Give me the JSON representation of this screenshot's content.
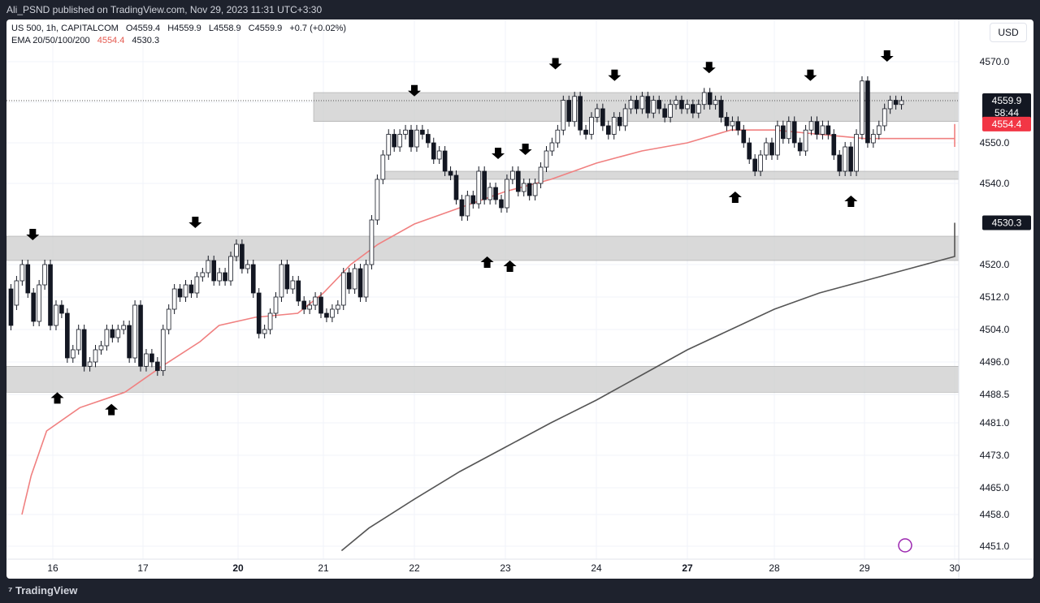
{
  "header": {
    "published": "Ali_PSND published on TradingView.com, Nov 29, 2023 11:31 UTC+3:30"
  },
  "legend": {
    "symbol": "US 500, 1h, CAPITALCOM",
    "open": "O4559.4",
    "high": "H4559.9",
    "low": "L4558.9",
    "close": "C4559.9",
    "change": "+0.7 (+0.02%)",
    "ema_label": "EMA 20/50/100/200",
    "ema_val1": "4554.4",
    "ema_val2": "4530.3"
  },
  "currency": "USD",
  "footer": {
    "brand": "TradingView"
  },
  "colors": {
    "bull": "#26a69a",
    "bear": "#ef5350",
    "candle": "#131722",
    "ema_fast": "#f08080",
    "ema_slow": "#555555",
    "zone": "#cccccc"
  },
  "chart_data": {
    "type": "candlestick",
    "symbol": "US 500",
    "interval": "1h",
    "ylim": [
      4448,
      4576
    ],
    "y_ticks": [
      "4570.0",
      "4550.0",
      "4540.0",
      "4520.0",
      "4512.0",
      "4504.0",
      "4496.0",
      "4488.5",
      "4481.0",
      "4473.0",
      "4465.0",
      "4458.0",
      "4451.0"
    ],
    "x_ticks": [
      "16",
      "17",
      "20",
      "21",
      "22",
      "23",
      "24",
      "27",
      "28",
      "29",
      "30"
    ],
    "price_labels": [
      {
        "value": 4559.9,
        "text": "4559.9",
        "sub": "58:44",
        "kind": "last"
      },
      {
        "value": 4554.4,
        "text": "4554.4",
        "kind": "ema20"
      },
      {
        "value": 4530.3,
        "text": "4530.3",
        "kind": "ema200"
      }
    ],
    "zones": [
      {
        "from": 4555,
        "to": 4562,
        "start": "20"
      },
      {
        "from": 4541,
        "to": 4543,
        "start": "21"
      },
      {
        "from": 4521,
        "to": 4527,
        "start": "15"
      },
      {
        "from": 4489,
        "to": 4495,
        "start": "15"
      }
    ],
    "ema20": [
      [
        15.0,
        4458
      ],
      [
        15.3,
        4468
      ],
      [
        15.8,
        4479
      ],
      [
        16.3,
        4485
      ],
      [
        16.8,
        4489
      ],
      [
        17.2,
        4495
      ],
      [
        17.6,
        4501
      ],
      [
        17.8,
        4505
      ],
      [
        18.2,
        4507
      ],
      [
        18.7,
        4508
      ],
      [
        19.0,
        4513
      ],
      [
        19.3,
        4520
      ],
      [
        19.6,
        4525
      ],
      [
        20.0,
        4530
      ],
      [
        20.5,
        4534
      ],
      [
        21.0,
        4538
      ],
      [
        21.5,
        4541
      ],
      [
        22.0,
        4545
      ],
      [
        22.5,
        4548
      ],
      [
        23.0,
        4550
      ],
      [
        23.5,
        4553
      ],
      [
        24.0,
        4553
      ],
      [
        24.5,
        4552
      ],
      [
        25.0,
        4551
      ],
      [
        25.5,
        4551
      ],
      [
        26.0,
        4551
      ],
      [
        26.3,
        4551
      ],
      [
        26.6,
        4549
      ],
      [
        27.0,
        4551
      ],
      [
        27.2,
        4553
      ],
      [
        27.5,
        4554.4
      ]
    ],
    "ema200": [
      [
        19.2,
        4450
      ],
      [
        19.5,
        4455
      ],
      [
        20.0,
        4462
      ],
      [
        20.5,
        4469
      ],
      [
        21.0,
        4475
      ],
      [
        21.5,
        4481
      ],
      [
        22.0,
        4487
      ],
      [
        22.5,
        4493
      ],
      [
        23.0,
        4499
      ],
      [
        23.5,
        4504
      ],
      [
        24.0,
        4509
      ],
      [
        24.5,
        4513
      ],
      [
        25.0,
        4516
      ],
      [
        25.5,
        4519
      ],
      [
        26.0,
        4522
      ],
      [
        26.5,
        4524
      ],
      [
        27.0,
        4526
      ],
      [
        27.5,
        4528
      ],
      [
        28.0,
        4530.3
      ]
    ],
    "arrows": [
      {
        "x": 15.35,
        "y": 4526,
        "dir": "down"
      },
      {
        "x": 17.55,
        "y": 4529,
        "dir": "down"
      },
      {
        "x": 20.0,
        "y": 4561,
        "dir": "down"
      },
      {
        "x": 20.92,
        "y": 4546,
        "dir": "down"
      },
      {
        "x": 21.22,
        "y": 4547,
        "dir": "down"
      },
      {
        "x": 21.55,
        "y": 4568,
        "dir": "down"
      },
      {
        "x": 22.2,
        "y": 4565,
        "dir": "down"
      },
      {
        "x": 23.25,
        "y": 4567,
        "dir": "down"
      },
      {
        "x": 24.4,
        "y": 4565,
        "dir": "down"
      },
      {
        "x": 25.25,
        "y": 4570,
        "dir": "down"
      },
      {
        "x": 16.05,
        "y": 4489,
        "dir": "up"
      },
      {
        "x": 16.65,
        "y": 4486,
        "dir": "up"
      },
      {
        "x": 20.8,
        "y": 4522,
        "dir": "up"
      },
      {
        "x": 21.05,
        "y": 4521,
        "dir": "up"
      },
      {
        "x": 23.55,
        "y": 4538,
        "dir": "up"
      },
      {
        "x": 24.85,
        "y": 4537,
        "dir": "up"
      }
    ],
    "candles": [
      [
        4514,
        4505
      ],
      [
        4510,
        4516
      ],
      [
        4516,
        4520
      ],
      [
        4520,
        4513
      ],
      [
        4513,
        4506
      ],
      [
        4506,
        4515
      ],
      [
        4515,
        4520
      ],
      [
        4520,
        4505
      ],
      [
        4505,
        4510
      ],
      [
        4510,
        4508
      ],
      [
        4508,
        4497
      ],
      [
        4497,
        4499
      ],
      [
        4499,
        4504
      ],
      [
        4504,
        4495
      ],
      [
        4495,
        4496
      ],
      [
        4496,
        4499
      ],
      [
        4499,
        4500
      ],
      [
        4500,
        4504
      ],
      [
        4504,
        4502
      ],
      [
        4502,
        4504
      ],
      [
        4504,
        4505
      ],
      [
        4505,
        4497
      ],
      [
        4497,
        4510
      ],
      [
        4510,
        4495
      ],
      [
        4495,
        4498
      ],
      [
        4498,
        4496
      ],
      [
        4496,
        4494
      ],
      [
        4494,
        4504
      ],
      [
        4504,
        4509
      ],
      [
        4509,
        4514
      ],
      [
        4514,
        4512
      ],
      [
        4512,
        4515
      ],
      [
        4515,
        4513
      ],
      [
        4513,
        4517
      ],
      [
        4517,
        4518
      ],
      [
        4518,
        4521
      ],
      [
        4521,
        4516
      ],
      [
        4516,
        4518
      ],
      [
        4518,
        4516
      ],
      [
        4516,
        4522
      ],
      [
        4522,
        4525
      ],
      [
        4525,
        4519
      ],
      [
        4519,
        4520
      ],
      [
        4520,
        4513
      ],
      [
        4513,
        4503
      ],
      [
        4503,
        4504
      ],
      [
        4504,
        4508
      ],
      [
        4508,
        4512
      ],
      [
        4512,
        4520
      ],
      [
        4520,
        4514
      ],
      [
        4514,
        4516
      ],
      [
        4516,
        4511
      ],
      [
        4511,
        4509
      ],
      [
        4509,
        4510
      ],
      [
        4510,
        4512
      ],
      [
        4512,
        4508
      ],
      [
        4508,
        4507
      ],
      [
        4507,
        4509
      ],
      [
        4509,
        4510
      ],
      [
        4510,
        4518
      ],
      [
        4518,
        4514
      ],
      [
        4514,
        4519
      ],
      [
        4519,
        4512
      ],
      [
        4512,
        4520
      ],
      [
        4520,
        4531
      ],
      [
        4531,
        4541
      ],
      [
        4541,
        4547
      ],
      [
        4547,
        4552
      ],
      [
        4552,
        4549
      ],
      [
        4549,
        4552
      ],
      [
        4552,
        4553
      ],
      [
        4553,
        4549
      ],
      [
        4549,
        4553
      ],
      [
        4553,
        4552
      ],
      [
        4552,
        4550
      ],
      [
        4550,
        4546
      ],
      [
        4546,
        4548
      ],
      [
        4548,
        4543
      ],
      [
        4543,
        4542
      ],
      [
        4542,
        4536
      ],
      [
        4536,
        4532
      ],
      [
        4532,
        4537
      ],
      [
        4537,
        4535
      ],
      [
        4535,
        4543
      ],
      [
        4543,
        4536
      ],
      [
        4536,
        4539
      ],
      [
        4539,
        4536
      ],
      [
        4536,
        4534
      ],
      [
        4534,
        4541
      ],
      [
        4541,
        4543
      ],
      [
        4543,
        4538
      ],
      [
        4538,
        4540
      ],
      [
        4540,
        4537
      ],
      [
        4537,
        4540
      ],
      [
        4540,
        4544
      ],
      [
        4544,
        4548
      ],
      [
        4548,
        4550
      ],
      [
        4550,
        4553
      ],
      [
        4553,
        4560
      ],
      [
        4560,
        4555
      ],
      [
        4555,
        4561
      ],
      [
        4561,
        4553
      ],
      [
        4553,
        4552
      ],
      [
        4552,
        4556
      ],
      [
        4556,
        4558
      ],
      [
        4558,
        4554
      ],
      [
        4554,
        4552
      ],
      [
        4552,
        4556
      ],
      [
        4556,
        4554
      ],
      [
        4554,
        4558
      ],
      [
        4558,
        4560
      ],
      [
        4560,
        4558
      ],
      [
        4558,
        4561
      ],
      [
        4561,
        4557
      ],
      [
        4557,
        4560
      ],
      [
        4560,
        4558
      ],
      [
        4558,
        4556
      ],
      [
        4556,
        4559
      ],
      [
        4559,
        4560
      ],
      [
        4560,
        4558
      ],
      [
        4558,
        4559
      ],
      [
        4559,
        4557
      ],
      [
        4557,
        4559
      ],
      [
        4559,
        4562
      ],
      [
        4562,
        4559
      ],
      [
        4559,
        4560
      ],
      [
        4560,
        4556
      ],
      [
        4556,
        4554
      ],
      [
        4554,
        4555
      ],
      [
        4555,
        4553
      ],
      [
        4553,
        4550
      ],
      [
        4550,
        4546
      ],
      [
        4546,
        4543
      ],
      [
        4543,
        4547
      ],
      [
        4547,
        4550
      ],
      [
        4550,
        4547
      ],
      [
        4547,
        4554
      ],
      [
        4554,
        4551
      ],
      [
        4551,
        4555
      ],
      [
        4555,
        4550
      ],
      [
        4550,
        4548
      ],
      [
        4548,
        4553
      ],
      [
        4553,
        4555
      ],
      [
        4555,
        4552
      ],
      [
        4552,
        4554
      ],
      [
        4554,
        4552
      ],
      [
        4552,
        4547
      ],
      [
        4547,
        4543
      ],
      [
        4543,
        4549
      ],
      [
        4549,
        4543
      ],
      [
        4543,
        4552
      ],
      [
        4552,
        4565
      ],
      [
        4565,
        4550
      ],
      [
        4550,
        4552
      ],
      [
        4552,
        4554
      ],
      [
        4554,
        4558
      ],
      [
        4558,
        4560
      ],
      [
        4560,
        4559
      ],
      [
        4559,
        4559.9
      ]
    ]
  }
}
